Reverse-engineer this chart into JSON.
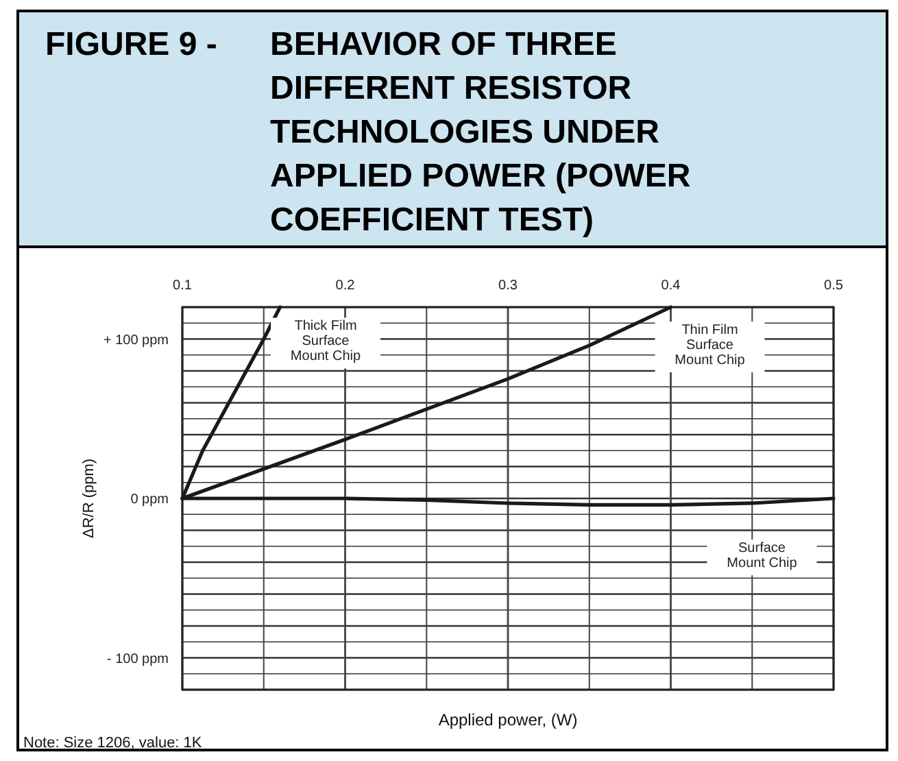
{
  "chart_data": {
    "type": "line",
    "title": "FIGURE 9 - BEHAVIOR OF THREE DIFFERENT RESISTOR TECHNOLOGIES UNDER APPLIED POWER (POWER COEFFICIENT TEST)",
    "xlabel": "Applied power, (W)",
    "ylabel": "ΔR/R (ppm)",
    "annotations": [
      "Note: Size 1206, value: 1K"
    ],
    "series": [
      {
        "name": "Thick Film Surface Mount Chip",
        "color": "#1a1a1a",
        "x": [
          0.1,
          0.1125,
          0.15,
          0.16
        ],
        "values": [
          0,
          30,
          100,
          120
        ]
      },
      {
        "name": "Thin Film Surface Mount Chip",
        "color": "#1a1a1a",
        "x": [
          0.1,
          0.2,
          0.3,
          0.35,
          0.4
        ],
        "values": [
          0,
          37,
          75,
          96,
          120
        ]
      },
      {
        "name": "Surface Mount Chip",
        "color": "#1a1a1a",
        "x": [
          0.1,
          0.2,
          0.25,
          0.3,
          0.35,
          0.4,
          0.45,
          0.5
        ],
        "values": [
          0,
          0,
          -1,
          -3,
          -4,
          -4,
          -3,
          0
        ]
      }
    ],
    "xlim": [
      0.1,
      0.5
    ],
    "ylim": [
      -120,
      120
    ],
    "xticks": [
      0.1,
      {
        "value": 0.15,
        "label": null
      },
      0.2,
      {
        "value": 0.25,
        "label": null
      },
      0.3,
      {
        "value": 0.35,
        "label": null
      },
      0.4,
      {
        "value": 0.45,
        "label": null
      },
      0.5
    ],
    "yticks": [
      {
        "value": -120,
        "label": null
      },
      {
        "value": -110,
        "label": null
      },
      {
        "value": -100,
        "label": "- 100 ppm"
      },
      {
        "value": -90,
        "label": null
      },
      {
        "value": -80,
        "label": null
      },
      {
        "value": -70,
        "label": null
      },
      {
        "value": -60,
        "label": null
      },
      {
        "value": -50,
        "label": null
      },
      {
        "value": -40,
        "label": null
      },
      {
        "value": -30,
        "label": null
      },
      {
        "value": -20,
        "label": null
      },
      {
        "value": -10,
        "label": null
      },
      {
        "value": 0,
        "label": "0 ppm"
      },
      {
        "value": 10,
        "label": null
      },
      {
        "value": 20,
        "label": null
      },
      {
        "value": 30,
        "label": null
      },
      {
        "value": 40,
        "label": null
      },
      {
        "value": 50,
        "label": null
      },
      {
        "value": 60,
        "label": null
      },
      {
        "value": 70,
        "label": null
      },
      {
        "value": 80,
        "label": null
      },
      {
        "value": 90,
        "label": null
      },
      {
        "value": 100,
        "label": "+ 100 ppm"
      },
      {
        "value": 110,
        "label": null
      },
      {
        "value": 120,
        "label": null
      }
    ],
    "grid": true,
    "marker": "none",
    "line_style": "solid"
  }
}
